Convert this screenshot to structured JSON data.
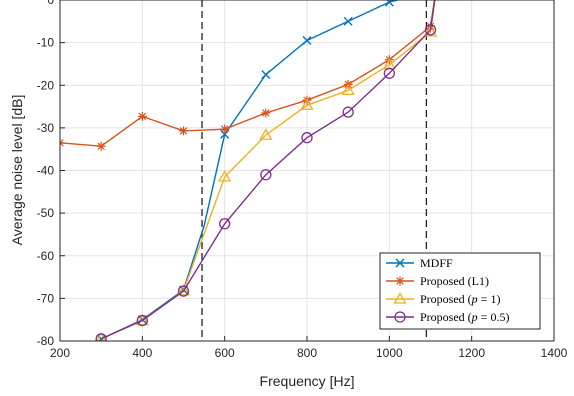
{
  "chart_data": {
    "type": "line",
    "xlabel": "Frequency [Hz]",
    "ylabel": "Average noise level [dB]",
    "xlim": [
      200,
      1400
    ],
    "ylim": [
      -80,
      0
    ],
    "grid": true,
    "legend_position": "bottom-right",
    "x_ticks": [
      "200",
      "400",
      "600",
      "800",
      "1000",
      "1200",
      "1400"
    ],
    "y_ticks": [
      "0",
      "-10",
      "-20",
      "-30",
      "-40",
      "-50",
      "-60",
      "-70",
      "-80"
    ],
    "vertical_lines": [
      545,
      1090
    ],
    "series": [
      {
        "name": "MDFF",
        "color": "#0072BD",
        "marker": "x",
        "x": [
          300,
          400,
          500,
          550,
          600,
          700,
          800,
          900,
          1000,
          1100,
          1125
        ],
        "y": [
          -79.5,
          -75,
          -68,
          -53,
          -31.5,
          -17.5,
          -9.5,
          -5,
          -0.5,
          2,
          12
        ],
        "marked": [
          true,
          true,
          true,
          false,
          true,
          true,
          true,
          true,
          true,
          true,
          false
        ]
      },
      {
        "name": "Proposed (L1)",
        "color": "#D95319",
        "marker": "asterisk",
        "x": [
          200,
          300,
          400,
          500,
          600,
          700,
          800,
          900,
          1000,
          1100,
          1125
        ],
        "y": [
          -33.5,
          -34.3,
          -27.3,
          -30.7,
          -30.3,
          -26.5,
          -23.5,
          -19.8,
          -14,
          -6.2,
          10
        ],
        "marked": [
          true,
          true,
          true,
          true,
          true,
          true,
          true,
          true,
          true,
          true,
          false
        ]
      },
      {
        "name": "Proposed (p = 1)",
        "color": "#EDB120",
        "marker": "triangle",
        "x": [
          300,
          400,
          500,
          600,
          700,
          800,
          900,
          1000,
          1100,
          1125
        ],
        "y": [
          -79.5,
          -75.2,
          -68.2,
          -41.5,
          -31.7,
          -24.7,
          -21.2,
          -15.2,
          -7.5,
          10
        ],
        "marked": [
          true,
          true,
          true,
          true,
          true,
          true,
          true,
          true,
          true,
          false
        ]
      },
      {
        "name": "Proposed (p = 0.5)",
        "color": "#7E2F8E",
        "marker": "circle",
        "x": [
          300,
          400,
          500,
          600,
          700,
          800,
          900,
          1000,
          1100,
          1125
        ],
        "y": [
          -79.5,
          -75.2,
          -68.3,
          -52.5,
          -41,
          -32.3,
          -26.3,
          -17.2,
          -7,
          10
        ],
        "marked": [
          true,
          true,
          true,
          true,
          true,
          true,
          true,
          true,
          true,
          false
        ]
      }
    ],
    "legend": [
      {
        "prefix": "MDFF",
        "var": "",
        "eq": ""
      },
      {
        "prefix": "Proposed (L1)",
        "var": "",
        "eq": ""
      },
      {
        "prefix": "Proposed (",
        "var": "p",
        "eq": " = 1)"
      },
      {
        "prefix": "Proposed (",
        "var": "p",
        "eq": " = 0.5)"
      }
    ]
  }
}
